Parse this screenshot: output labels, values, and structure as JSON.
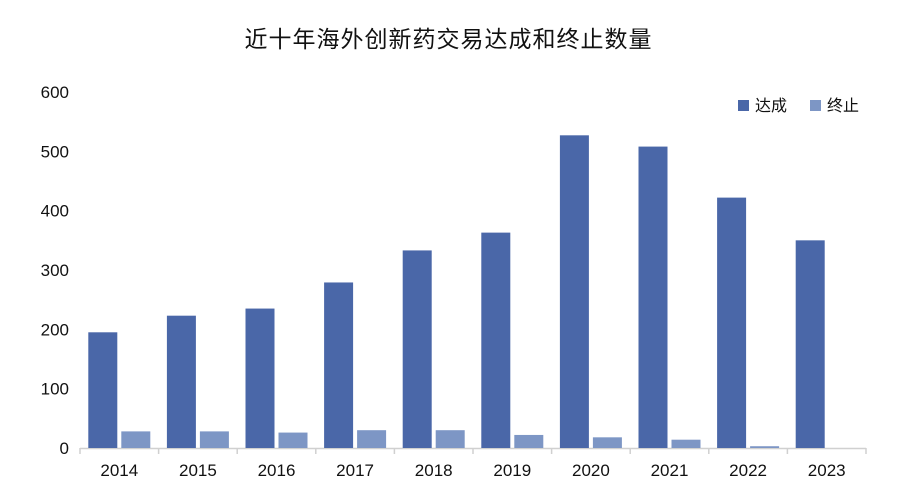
{
  "chart_data": {
    "type": "bar",
    "title": "近十年海外创新药交易达成和终止数量",
    "categories": [
      "2014",
      "2015",
      "2016",
      "2017",
      "2018",
      "2019",
      "2020",
      "2021",
      "2022",
      "2023"
    ],
    "series": [
      {
        "name": "达成",
        "color": "#4a67a8",
        "values": [
          195,
          223,
          235,
          279,
          333,
          363,
          527,
          508,
          422,
          350
        ]
      },
      {
        "name": "终止",
        "color": "#7d96c5",
        "values": [
          28,
          28,
          26,
          30,
          30,
          22,
          18,
          14,
          3,
          0
        ]
      }
    ],
    "ylim": [
      0,
      600
    ],
    "yticks": [
      0,
      100,
      200,
      300,
      400,
      500,
      600
    ],
    "xlabel": "",
    "ylabel": "",
    "grid": false,
    "legend_position": "top-right"
  }
}
